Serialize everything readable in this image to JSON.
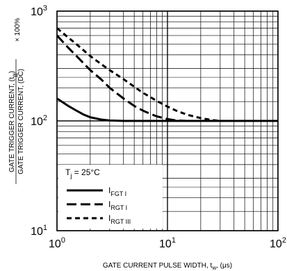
{
  "chart_data": {
    "type": "line",
    "x_scale": "log",
    "y_scale": "log",
    "xlim": [
      1,
      100
    ],
    "ylim": [
      10,
      1000
    ],
    "grid": true,
    "legend_position": "bottom-left",
    "xlabel": {
      "main": "GATE CURRENT PULSE WIDTH, t",
      "sub": "w",
      "unit": ", (μs)"
    },
    "ylabel": {
      "numerator_main": "GATE TRIGGER CURRENT, (t",
      "numerator_sub": "w",
      "numerator_end": ")",
      "denominator": "GATE TRIGGER CURRENT, (DC)",
      "multiplier": "× 100%"
    },
    "x_ticks": [
      {
        "value": 1,
        "base": "10",
        "exp": "0"
      },
      {
        "value": 10,
        "base": "10",
        "exp": "1"
      },
      {
        "value": 100,
        "base": "10",
        "exp": "2"
      }
    ],
    "y_ticks": [
      {
        "value": 10,
        "base": "10",
        "exp": "1"
      },
      {
        "value": 100,
        "base": "10",
        "exp": "2"
      },
      {
        "value": 1000,
        "base": "10",
        "exp": "3"
      }
    ],
    "legend_title": {
      "main": "T",
      "sub": "j",
      "rest": " = 25°C"
    },
    "series": [
      {
        "name_main": "I",
        "name_sub": "FGT I",
        "style": "solid",
        "x": [
          1,
          1.25,
          1.5,
          1.75,
          2,
          2.5,
          3,
          4,
          5,
          7,
          10,
          20,
          50,
          100
        ],
        "y": [
          160,
          138,
          124,
          114,
          108,
          103,
          101,
          100,
          100,
          100,
          100,
          100,
          100,
          100
        ]
      },
      {
        "name_main": "I",
        "name_sub": "RGT I",
        "style": "long-dash",
        "x": [
          1,
          1.25,
          1.5,
          2,
          2.5,
          3,
          4,
          5,
          6,
          7,
          8,
          10,
          12,
          15,
          20,
          50,
          100
        ],
        "y": [
          600,
          470,
          390,
          290,
          240,
          200,
          160,
          137,
          124,
          116,
          110,
          104,
          101,
          100,
          100,
          100,
          100
        ]
      },
      {
        "name_main": "I",
        "name_sub": "RGT III",
        "style": "short-dash",
        "x": [
          1,
          1.25,
          1.5,
          2,
          2.5,
          3,
          4,
          5,
          6,
          7,
          8,
          10,
          12,
          15,
          20,
          25,
          30,
          50,
          100
        ],
        "y": [
          700,
          580,
          500,
          390,
          330,
          290,
          240,
          205,
          180,
          165,
          152,
          135,
          124,
          114,
          106,
          102,
          100,
          100,
          100
        ]
      }
    ]
  }
}
